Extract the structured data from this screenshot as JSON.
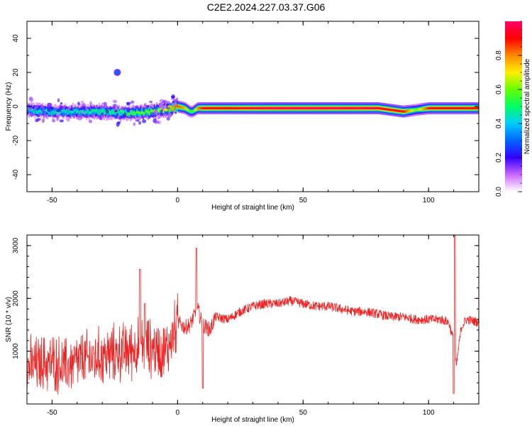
{
  "title": "C2E2.2024.227.03.37.G06",
  "chart_data": [
    {
      "type": "heatmap",
      "xlabel": "Height of straight line (km)",
      "ylabel": "Frequency (Hz)",
      "xlim": [
        -60,
        120
      ],
      "ylim": [
        -50,
        50
      ],
      "x_ticks": [
        -50,
        0,
        50,
        100
      ],
      "y_ticks": [
        -40,
        -20,
        0,
        20,
        40
      ],
      "colorbar": {
        "label": "Normalized spectral amplitude",
        "range": [
          0,
          1
        ],
        "ticks": [
          0.0,
          0.2,
          0.4,
          0.6,
          0.8
        ],
        "colors": [
          "#ffffff",
          "#cc66ff",
          "#3300ff",
          "#0066ff",
          "#00ccff",
          "#00ff66",
          "#66ff00",
          "#ffee00",
          "#ff8800",
          "#ff0000",
          "#ff0066"
        ]
      },
      "ridge": {
        "x": [
          -60,
          -50,
          -40,
          -30,
          -20,
          -10,
          -5,
          0,
          3,
          5,
          6,
          8,
          10,
          20,
          30,
          40,
          50,
          60,
          70,
          80,
          90,
          95,
          100,
          110,
          120
        ],
        "frequency": [
          -2,
          -3,
          -3,
          -3,
          -4,
          -3,
          -2,
          0,
          -1,
          -3,
          -3,
          -1,
          -1,
          -1,
          -1,
          -1,
          -1,
          -1,
          -1,
          -1,
          -3,
          -2,
          -1,
          -1,
          -1
        ],
        "amplitude": [
          0.45,
          0.45,
          0.45,
          0.5,
          0.55,
          0.6,
          0.7,
          0.85,
          0.75,
          0.55,
          0.55,
          0.8,
          0.9,
          0.9,
          0.95,
          0.98,
          0.98,
          0.98,
          0.97,
          0.95,
          0.9,
          0.6,
          0.9,
          0.9,
          0.9
        ]
      },
      "isolated_blobs": [
        {
          "x": -24,
          "frequency": 20,
          "amplitude": 0.3
        }
      ]
    },
    {
      "type": "line",
      "xlabel": "Height of straight line (km)",
      "ylabel": "SNR (10 * v/v)",
      "xlim": [
        -60,
        120
      ],
      "ylim": [
        0,
        3200
      ],
      "x_ticks": [
        -50,
        0,
        50,
        100
      ],
      "y_ticks": [
        1000,
        2000,
        3000
      ],
      "color": "#ee2222",
      "x": [
        -60,
        -55,
        -50,
        -45,
        -40,
        -35,
        -30,
        -25,
        -20,
        -15,
        -12,
        -10,
        -5,
        -3,
        0,
        3,
        5,
        7,
        8,
        10,
        13,
        15,
        20,
        25,
        30,
        35,
        40,
        45,
        50,
        55,
        60,
        65,
        70,
        75,
        80,
        85,
        90,
        95,
        100,
        105,
        108,
        110,
        111,
        113,
        115,
        120
      ],
      "y": [
        700,
        750,
        800,
        700,
        800,
        850,
        900,
        950,
        1000,
        1100,
        1100,
        1050,
        1000,
        1150,
        1550,
        1450,
        1500,
        1700,
        1800,
        1500,
        1400,
        1650,
        1600,
        1750,
        1850,
        1900,
        1900,
        1950,
        1900,
        1850,
        1850,
        1800,
        1750,
        1750,
        1700,
        1650,
        1650,
        1600,
        1600,
        1600,
        1550,
        1200,
        700,
        1450,
        1600,
        1550
      ],
      "spikes": [
        {
          "x": -15,
          "y": 2550
        },
        {
          "x": -13,
          "y": 1900
        },
        {
          "x": 7.5,
          "y": 2950
        },
        {
          "x": 10,
          "y": 300
        },
        {
          "x": 110.5,
          "y": 3200
        },
        {
          "x": 110,
          "y": 200
        }
      ]
    }
  ]
}
